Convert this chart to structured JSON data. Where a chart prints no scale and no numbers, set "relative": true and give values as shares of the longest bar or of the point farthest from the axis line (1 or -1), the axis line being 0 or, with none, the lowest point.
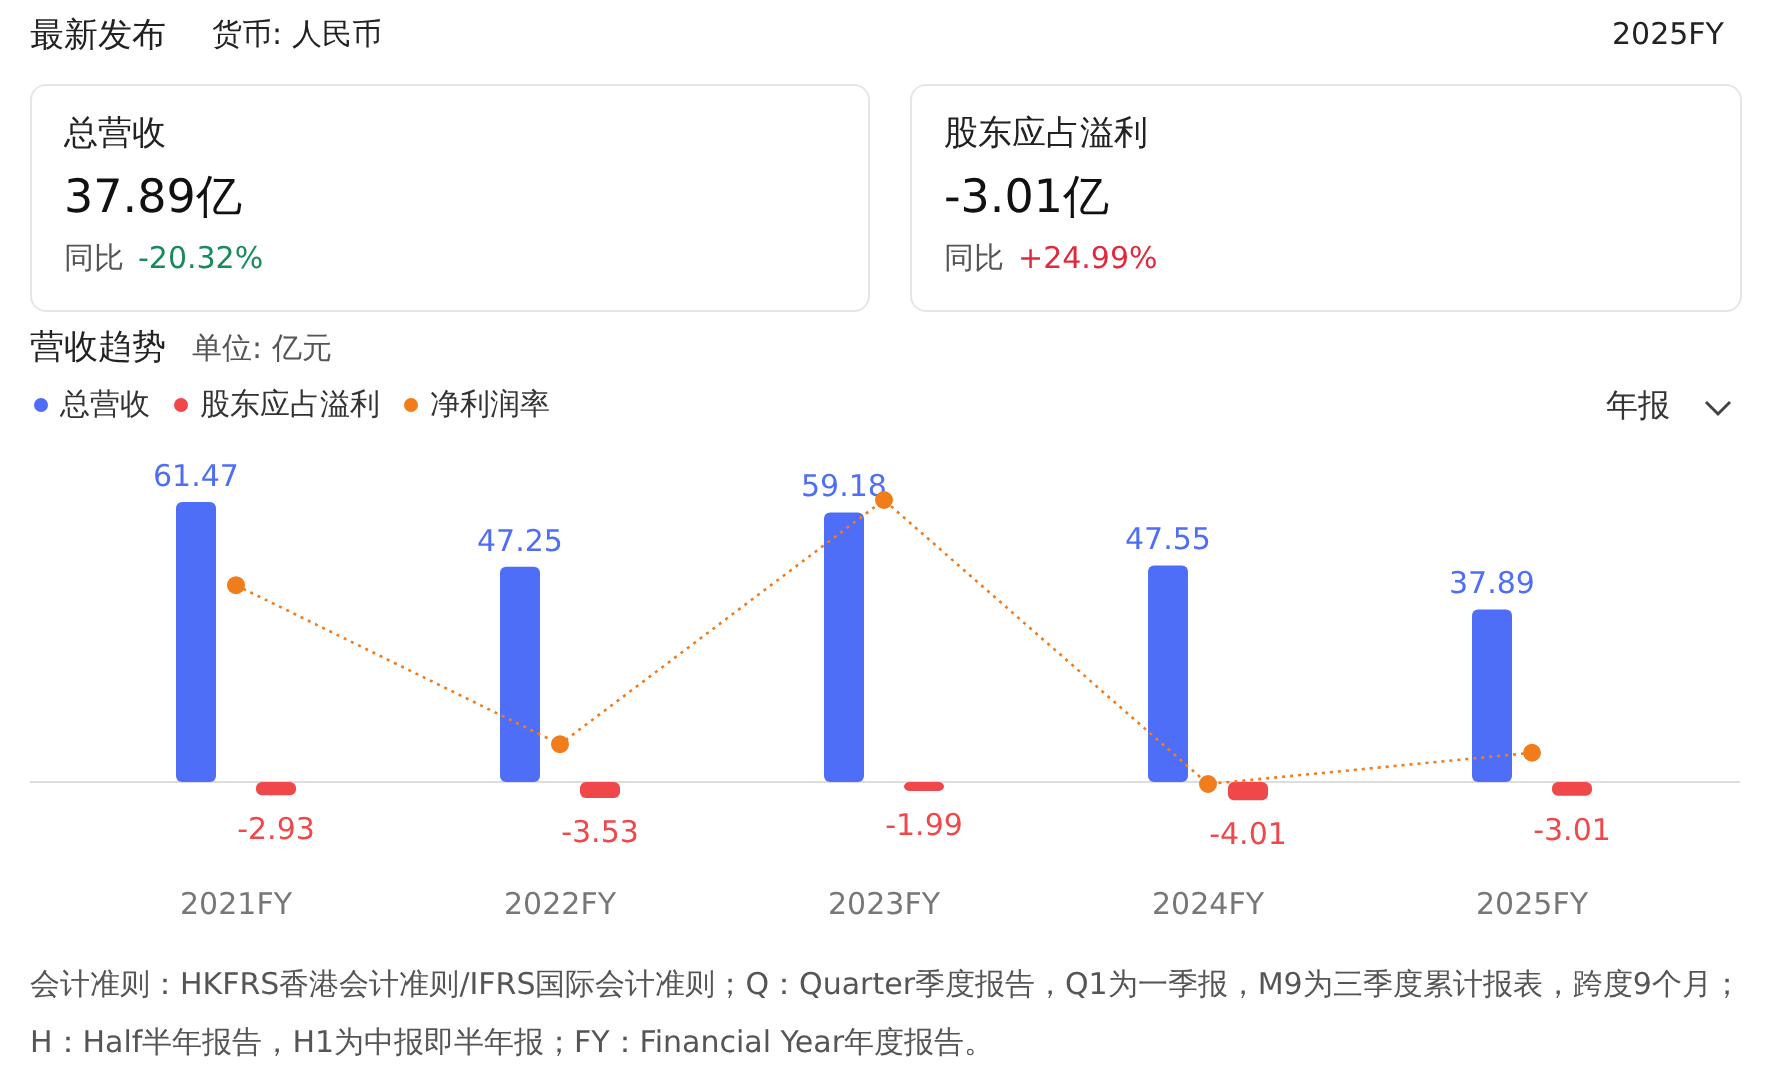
{
  "chart_data": [
    {
      "type": "other",
      "title": "最新发布",
      "annotations": [
        "货币: 人民币",
        "2025FY",
        "总营收",
        "37.89亿",
        "同比",
        "-20.32%",
        "股东应占溢利",
        "-3.01亿",
        "同比",
        "+24.99%"
      ]
    },
    {
      "type": "bar",
      "title": "营收趋势",
      "subtitle": "单位: 亿元",
      "categories": [
        "2021FY",
        "2022FY",
        "2023FY",
        "2024FY",
        "2025FY"
      ],
      "series": [
        {
          "name": "总营收",
          "color": "#4f6ef7",
          "values": [
            61.47,
            47.25,
            59.18,
            47.55,
            37.89
          ]
        },
        {
          "name": "股东应占溢利",
          "color": "#f0474b",
          "values": [
            -2.93,
            -3.53,
            -1.99,
            -4.01,
            -3.01
          ]
        }
      ],
      "data_labels": true,
      "legend": "top left",
      "annotations": [
        "年报",
        "会计准则：HKFRS香港会计准则/IFRS国际会计准则；Q：Quarter季度报告，Q1为一季报，M9为三季度累计报表，跨度9个月；H：Half半年报告，H1为中报即半年报；FY：Financial Year年度报告。"
      ]
    },
    {
      "type": "line",
      "relative": true,
      "series": [
        {
          "name": "净利润率",
          "color": "#f07c1b",
          "values": [
            0.7,
            0.14,
            1,
            0,
            0.11
          ]
        }
      ],
      "marker": "circle",
      "line_style": "dotted",
      "legend": "top left"
    }
  ]
}
